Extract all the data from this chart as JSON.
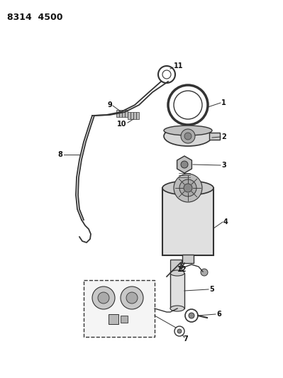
{
  "title": "8314  4500",
  "bg_color": "#ffffff",
  "line_color": "#333333",
  "text_color": "#111111",
  "label_fs": 7,
  "title_fs": 9
}
